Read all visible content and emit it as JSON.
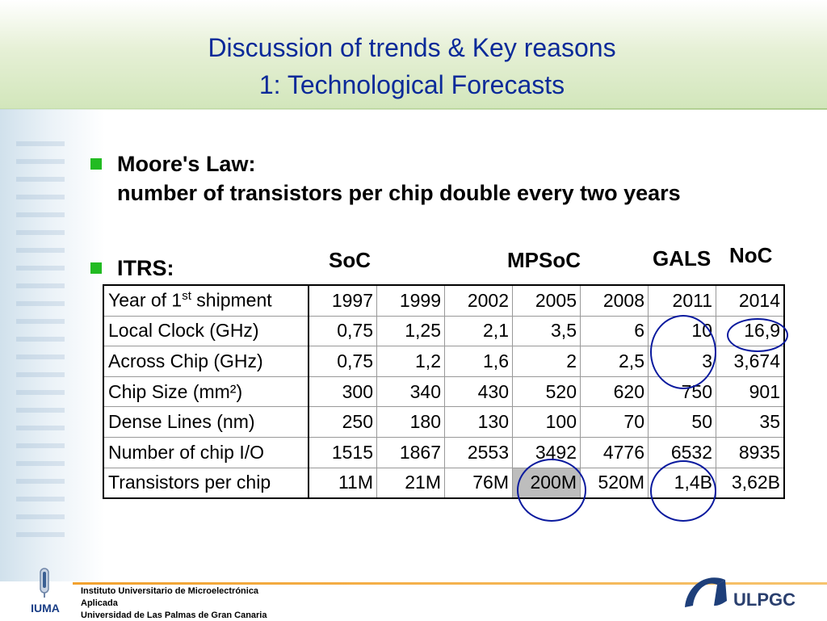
{
  "slide": {
    "title_line1": "Discussion of trends & Key reasons",
    "title_line2": "1: Technological Forecasts",
    "bullets": [
      {
        "line1": "Moore's Law:",
        "line2": "number of transistors per chip double every two years"
      },
      {
        "line1": "ITRS:"
      }
    ],
    "labels": {
      "soc": "SoC",
      "mpsoc": "MPSoC",
      "gals": "GALS",
      "noc": "NoC"
    }
  },
  "table": {
    "header": {
      "label": "Year of 1",
      "sup": "st",
      "label_tail": " shipment",
      "years": [
        "1997",
        "1999",
        "2002",
        "2005",
        "2008",
        "2011",
        "2014"
      ]
    },
    "rows": [
      {
        "label": "Local Clock (GHz)",
        "values": [
          "0,75",
          "1,25",
          "2,1",
          "3,5",
          "6",
          "10",
          "16,9"
        ]
      },
      {
        "label": "Across Chip (GHz)",
        "values": [
          "0,75",
          "1,2",
          "1,6",
          "2",
          "2,5",
          "3",
          "3,674"
        ]
      },
      {
        "label": "Chip Size (mm²)",
        "values": [
          "300",
          "340",
          "430",
          "520",
          "620",
          "750",
          "901"
        ]
      },
      {
        "label": "Dense Lines (nm)",
        "values": [
          "250",
          "180",
          "130",
          "100",
          "70",
          "50",
          "35"
        ]
      },
      {
        "label": "Number of chip I/O",
        "values": [
          "1515",
          "1867",
          "2553",
          "3492",
          "4776",
          "6532",
          "8935"
        ]
      },
      {
        "label": "Transistors per chip",
        "values": [
          "11M",
          "21M",
          "76M",
          "200M",
          "520M",
          "1,4B",
          "3,62B"
        ]
      }
    ],
    "shaded_cell": "200M"
  },
  "footer": {
    "line1": "Instituto Universitario de Microelectrónica",
    "line2": "Aplicada",
    "line3": "Universidad de Las Palmas de Gran Canaria",
    "logo_left_text": "IUMA",
    "logo_right_text": "ULPGC"
  },
  "colors": {
    "title": "#0b2a99",
    "bullet": "#22bb22",
    "circle": "#0a1a9e",
    "footer_line": "#f2a12e",
    "shade": "#bdbdbd"
  }
}
